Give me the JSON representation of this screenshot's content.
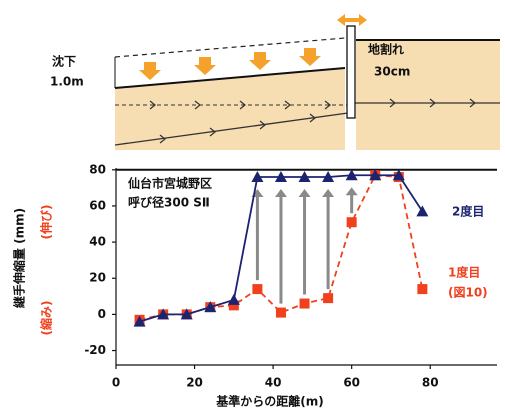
{
  "diagram": {
    "settlement": "沈下",
    "settlement_amount": "1.0m",
    "crack": "地割れ",
    "crack_width": "30cm"
  },
  "chart_data": {
    "type": "line",
    "x_label": "基準からの距離(m)",
    "y_label": "継手伸縮量 (mm)",
    "y_label_positive": "(伸び)",
    "y_label_negative": "(縮み)",
    "annotations": [
      "仙台市宮城野区",
      "呼び径300 SⅡ"
    ],
    "figure_note": "(図10)",
    "x": [
      6,
      12,
      18,
      24,
      30,
      36,
      42,
      48,
      54,
      60,
      66,
      72,
      78
    ],
    "series": [
      {
        "name": "1度目",
        "color": "#f0401e",
        "marker": "square",
        "dashed": true,
        "values": [
          -3,
          0,
          0,
          4,
          5,
          14,
          1,
          6,
          9,
          51,
          77,
          76,
          14
        ]
      },
      {
        "name": "2度目",
        "color": "#1c2470",
        "marker": "triangle",
        "dashed": false,
        "values": [
          -4,
          0,
          0,
          4,
          8,
          76,
          76,
          76,
          76,
          77,
          77,
          77,
          57
        ]
      }
    ],
    "xlim": [
      0,
      97
    ],
    "ylim": [
      -28,
      81
    ],
    "xticks": [
      0,
      20,
      40,
      60,
      80
    ],
    "yticks": [
      -20,
      0,
      20,
      40,
      60,
      80
    ]
  }
}
